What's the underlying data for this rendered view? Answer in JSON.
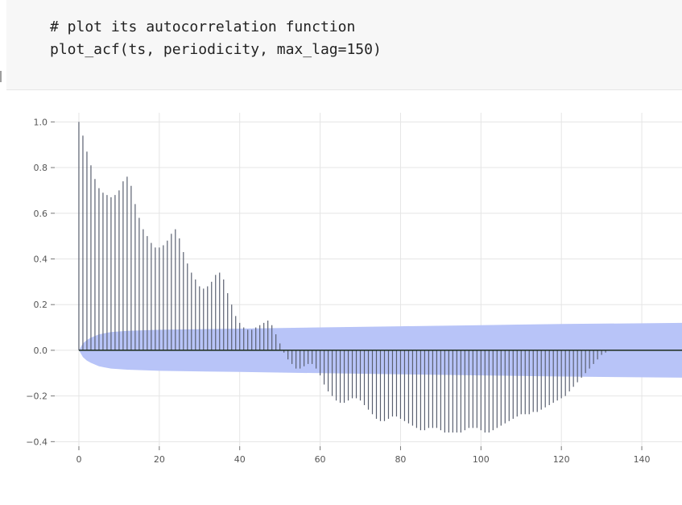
{
  "code": {
    "comment": "# plot its autocorrelation function",
    "call": "plot_acf(ts, periodicity, max_lag=150)"
  },
  "chart_data": {
    "type": "bar",
    "title": "",
    "xlabel": "",
    "ylabel": "",
    "xlim": [
      -6,
      150
    ],
    "ylim": [
      -0.42,
      1.04
    ],
    "x_ticks": [
      0,
      20,
      40,
      60,
      80,
      100,
      120,
      140
    ],
    "x_tick_labels": [
      "0",
      "20",
      "40",
      "60",
      "80",
      "100",
      "120",
      "140"
    ],
    "y_ticks": [
      1.0,
      0.8,
      0.6,
      0.4,
      0.2,
      0.0,
      -0.2,
      -0.4
    ],
    "y_tick_labels": [
      "1.0",
      "0.8",
      "0.6",
      "0.4",
      "0.2",
      "0.0",
      "−0.2",
      "−0.4"
    ],
    "grid": true,
    "colors": {
      "stem": "#5a6070",
      "band": "#b8c4f8",
      "zero_line": "#1a2a1a"
    },
    "lags": [
      0,
      1,
      2,
      3,
      4,
      5,
      6,
      7,
      8,
      9,
      10,
      11,
      12,
      13,
      14,
      15,
      16,
      17,
      18,
      19,
      20,
      21,
      22,
      23,
      24,
      25,
      26,
      27,
      28,
      29,
      30,
      31,
      32,
      33,
      34,
      35,
      36,
      37,
      38,
      39,
      40,
      41,
      42,
      43,
      44,
      45,
      46,
      47,
      48,
      49,
      50,
      51,
      52,
      53,
      54,
      55,
      56,
      57,
      58,
      59,
      60,
      61,
      62,
      63,
      64,
      65,
      66,
      67,
      68,
      69,
      70,
      71,
      72,
      73,
      74,
      75,
      76,
      77,
      78,
      79,
      80,
      81,
      82,
      83,
      84,
      85,
      86,
      87,
      88,
      89,
      90,
      91,
      92,
      93,
      94,
      95,
      96,
      97,
      98,
      99,
      100,
      101,
      102,
      103,
      104,
      105,
      106,
      107,
      108,
      109,
      110,
      111,
      112,
      113,
      114,
      115,
      116,
      117,
      118,
      119,
      120,
      121,
      122,
      123,
      124,
      125,
      126,
      127,
      128,
      129,
      130,
      131,
      132,
      133,
      134,
      135,
      136,
      137,
      138,
      139,
      140,
      141,
      142,
      143,
      144,
      145,
      146,
      147,
      148,
      149,
      150
    ],
    "acf": [
      1.0,
      0.94,
      0.87,
      0.81,
      0.75,
      0.71,
      0.69,
      0.68,
      0.67,
      0.68,
      0.7,
      0.74,
      0.76,
      0.72,
      0.64,
      0.58,
      0.53,
      0.5,
      0.47,
      0.45,
      0.45,
      0.46,
      0.48,
      0.51,
      0.53,
      0.49,
      0.43,
      0.38,
      0.34,
      0.31,
      0.28,
      0.27,
      0.28,
      0.3,
      0.33,
      0.34,
      0.31,
      0.25,
      0.2,
      0.15,
      0.12,
      0.1,
      0.09,
      0.09,
      0.1,
      0.11,
      0.12,
      0.13,
      0.11,
      0.07,
      0.03,
      -0.01,
      -0.04,
      -0.06,
      -0.08,
      -0.08,
      -0.07,
      -0.06,
      -0.06,
      -0.08,
      -0.11,
      -0.15,
      -0.18,
      -0.2,
      -0.22,
      -0.23,
      -0.23,
      -0.22,
      -0.21,
      -0.21,
      -0.22,
      -0.24,
      -0.26,
      -0.28,
      -0.3,
      -0.31,
      -0.31,
      -0.3,
      -0.29,
      -0.29,
      -0.3,
      -0.31,
      -0.32,
      -0.33,
      -0.34,
      -0.35,
      -0.35,
      -0.34,
      -0.34,
      -0.34,
      -0.35,
      -0.36,
      -0.36,
      -0.36,
      -0.36,
      -0.36,
      -0.35,
      -0.34,
      -0.34,
      -0.34,
      -0.35,
      -0.36,
      -0.36,
      -0.35,
      -0.34,
      -0.33,
      -0.32,
      -0.31,
      -0.3,
      -0.29,
      -0.28,
      -0.28,
      -0.28,
      -0.27,
      -0.27,
      -0.26,
      -0.25,
      -0.24,
      -0.23,
      -0.22,
      -0.21,
      -0.2,
      -0.18,
      -0.16,
      -0.14,
      -0.12,
      -0.1,
      -0.08,
      -0.06,
      -0.04,
      -0.02,
      -0.01,
      0.0,
      0.0,
      0.0,
      0.0,
      0.0,
      0.0,
      0.0,
      0.0,
      0.0,
      0.0,
      0.0,
      0.0,
      0.0,
      0.0,
      0.0,
      0.0,
      0.0,
      0.0,
      0.0
    ],
    "confidence_band": {
      "lags": [
        0,
        1,
        2,
        3,
        5,
        8,
        12,
        20,
        40,
        60,
        80,
        100,
        120,
        150
      ],
      "upper": [
        0.0,
        0.03,
        0.045,
        0.055,
        0.07,
        0.08,
        0.085,
        0.09,
        0.095,
        0.1,
        0.105,
        0.11,
        0.115,
        0.12
      ],
      "lower": [
        0.0,
        -0.03,
        -0.045,
        -0.055,
        -0.07,
        -0.08,
        -0.085,
        -0.09,
        -0.095,
        -0.1,
        -0.105,
        -0.11,
        -0.115,
        -0.12
      ]
    }
  }
}
